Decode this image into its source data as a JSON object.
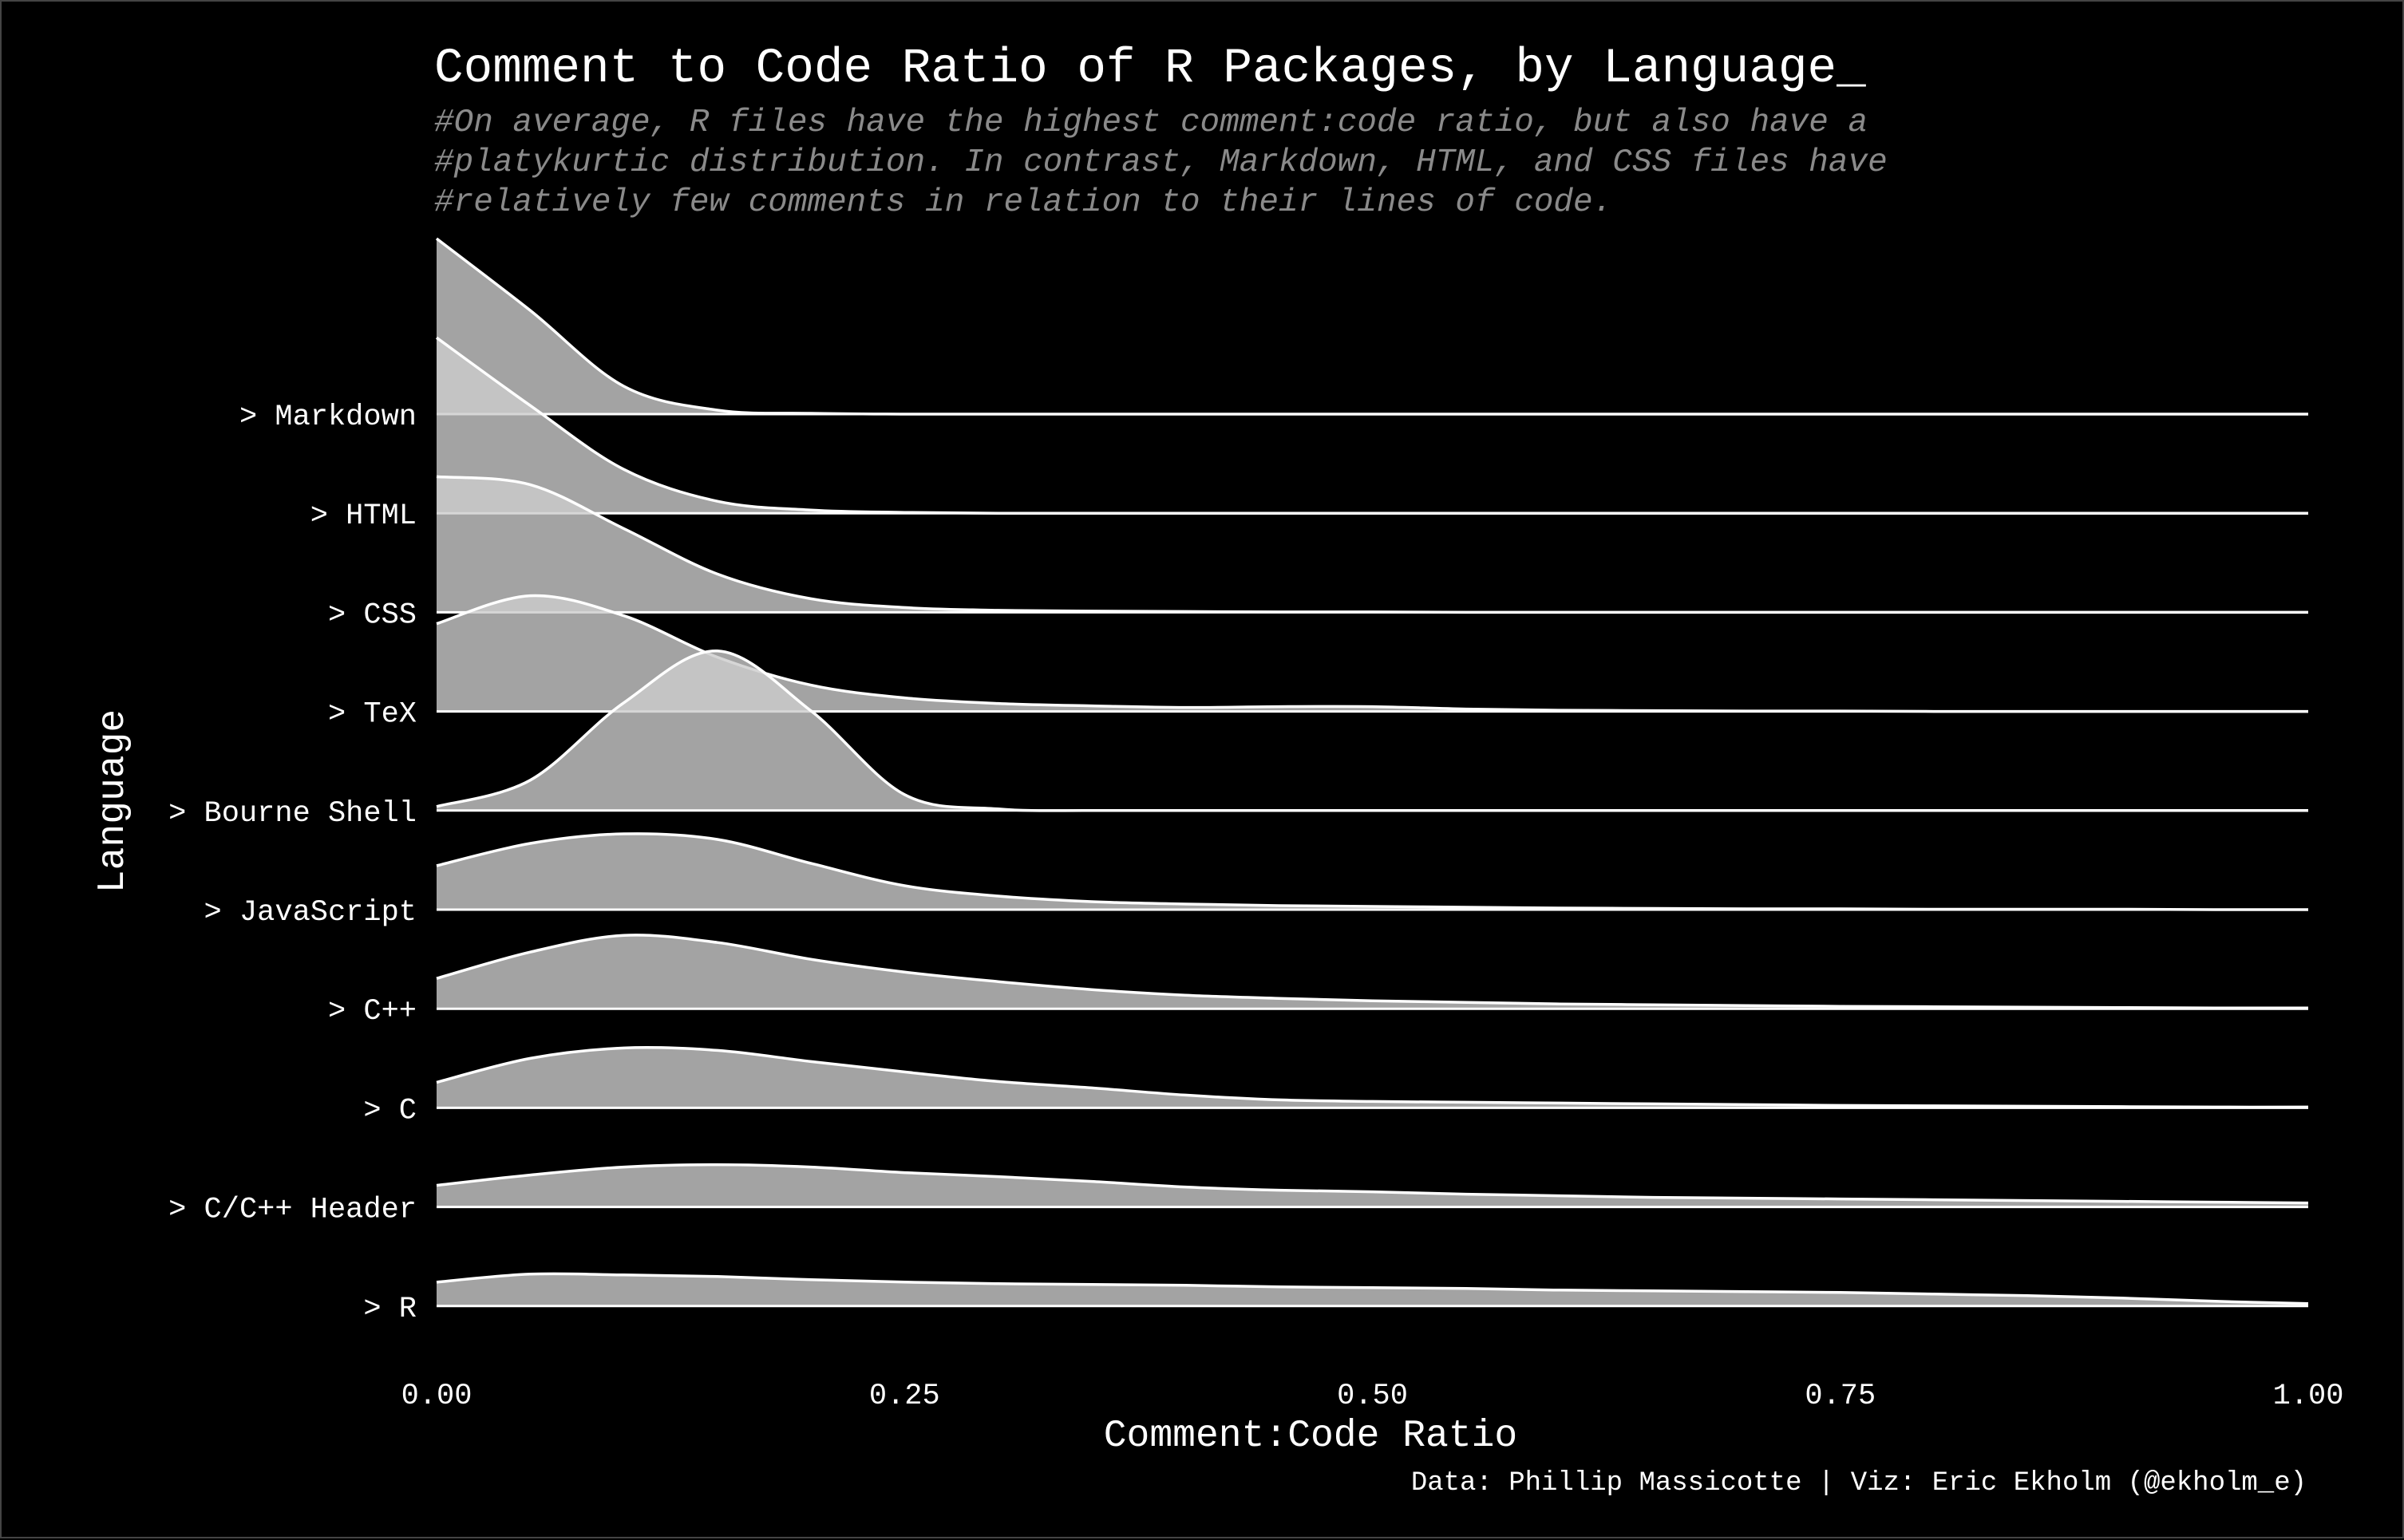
{
  "chart_data": {
    "type": "area",
    "subtype": "ridgeline",
    "title": "Comment to Code Ratio of R Packages, by Language_",
    "subtitle_lines": [
      "#On average, R files have the highest comment:code ratio, but also have a",
      "#platykurtic distribution. In contrast, Markdown, HTML, and CSS files have",
      "#relatively few comments in relation to their lines of code."
    ],
    "xlabel": "Comment:Code Ratio",
    "ylabel": "Language",
    "caption": "Data: Phillip Massicotte | Viz: Eric Ekholm (@ekholm_e)",
    "xlim": [
      0,
      1
    ],
    "x_ticks": [
      0.0,
      0.25,
      0.5,
      0.75,
      1.0
    ],
    "x_tick_labels": [
      "0.00",
      "0.25",
      "0.50",
      "0.75",
      "1.00"
    ],
    "fill_color": "#cccccc",
    "line_color": "#ffffff",
    "background": "#000000",
    "x": [
      0,
      0.05,
      0.1,
      0.15,
      0.2,
      0.25,
      0.3,
      0.35,
      0.4,
      0.45,
      0.5,
      0.55,
      0.6,
      0.65,
      0.7,
      0.75,
      0.8,
      0.85,
      0.9,
      0.95,
      1.0
    ],
    "series": [
      {
        "name": "> Markdown",
        "values": [
          2.2,
          1.3,
          0.35,
          0.05,
          0.01,
          0.0,
          0.0,
          0.0,
          0.0,
          0.0,
          0.0,
          0.0,
          0.0,
          0.0,
          0.0,
          0.0,
          0.0,
          0.0,
          0.0,
          0.0,
          0.0
        ]
      },
      {
        "name": "> HTML",
        "values": [
          2.2,
          1.35,
          0.55,
          0.15,
          0.04,
          0.01,
          0.0,
          0.0,
          0.0,
          0.0,
          0.0,
          0.0,
          0.0,
          0.0,
          0.0,
          0.0,
          0.0,
          0.0,
          0.0,
          0.0,
          0.0
        ]
      },
      {
        "name": "> CSS",
        "values": [
          1.7,
          1.6,
          1.05,
          0.48,
          0.17,
          0.06,
          0.025,
          0.015,
          0.01,
          0.005,
          0.005,
          0.0,
          0.0,
          0.0,
          0.0,
          0.0,
          0.0,
          0.0,
          0.0,
          0.0,
          0.0
        ]
      },
      {
        "name": "> TeX",
        "values": [
          1.1,
          1.45,
          1.2,
          0.68,
          0.33,
          0.17,
          0.1,
          0.07,
          0.05,
          0.06,
          0.06,
          0.03,
          0.015,
          0.01,
          0.005,
          0.005,
          0.0,
          0.0,
          0.0,
          0.0,
          0.0
        ]
      },
      {
        "name": "> Bourne Shell",
        "values": [
          0.05,
          0.38,
          1.35,
          2.0,
          1.25,
          0.2,
          0.02,
          0.0,
          0.0,
          0.0,
          0.0,
          0.0,
          0.0,
          0.0,
          0.0,
          0.0,
          0.0,
          0.0,
          0.0,
          0.0,
          0.0
        ]
      },
      {
        "name": "> JavaScript",
        "values": [
          0.55,
          0.83,
          0.95,
          0.88,
          0.58,
          0.3,
          0.17,
          0.1,
          0.07,
          0.05,
          0.04,
          0.03,
          0.02,
          0.015,
          0.01,
          0.01,
          0.005,
          0.005,
          0.005,
          0.0,
          0.0
        ]
      },
      {
        "name": "> C++",
        "values": [
          0.38,
          0.71,
          0.92,
          0.83,
          0.62,
          0.46,
          0.34,
          0.24,
          0.17,
          0.13,
          0.1,
          0.08,
          0.06,
          0.05,
          0.04,
          0.03,
          0.025,
          0.02,
          0.015,
          0.01,
          0.01
        ]
      },
      {
        "name": "> C",
        "values": [
          0.32,
          0.62,
          0.75,
          0.72,
          0.58,
          0.45,
          0.33,
          0.25,
          0.16,
          0.1,
          0.08,
          0.07,
          0.06,
          0.05,
          0.04,
          0.03,
          0.025,
          0.02,
          0.015,
          0.01,
          0.01
        ]
      },
      {
        "name": "> C/C++ Header",
        "values": [
          0.27,
          0.4,
          0.5,
          0.53,
          0.5,
          0.43,
          0.38,
          0.32,
          0.25,
          0.21,
          0.19,
          0.16,
          0.14,
          0.12,
          0.11,
          0.1,
          0.09,
          0.08,
          0.07,
          0.06,
          0.05
        ]
      },
      {
        "name": "> R",
        "values": [
          0.3,
          0.4,
          0.39,
          0.37,
          0.33,
          0.3,
          0.28,
          0.27,
          0.26,
          0.24,
          0.23,
          0.22,
          0.2,
          0.19,
          0.18,
          0.17,
          0.15,
          0.13,
          0.1,
          0.06,
          0.03
        ]
      }
    ]
  }
}
